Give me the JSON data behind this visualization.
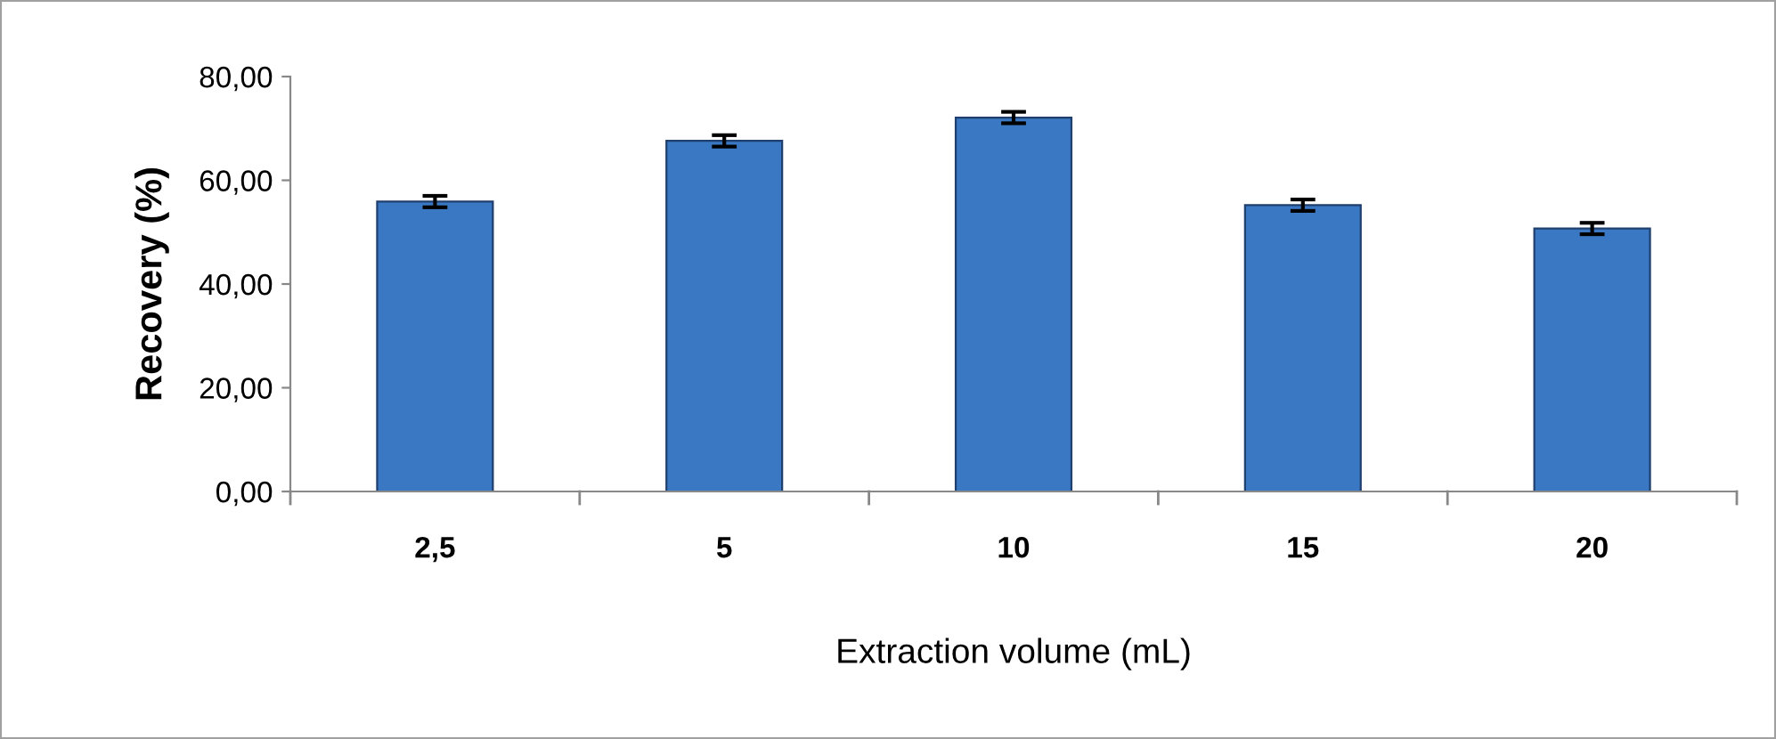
{
  "chart_data": {
    "type": "bar",
    "xlabel": "Extraction volume (mL)",
    "ylabel": "Recovery (%)",
    "categories": [
      "2,5",
      "5",
      "10",
      "15",
      "20"
    ],
    "values": [
      55.9,
      67.6,
      72.1,
      55.2,
      50.7
    ],
    "errors": [
      1.1,
      1.1,
      1.1,
      1.1,
      1.1
    ],
    "color": "#3a78c3",
    "ylim": [
      0,
      80
    ],
    "yticks": [
      {
        "value": 0,
        "label": "0,00"
      },
      {
        "value": 20,
        "label": "20,00"
      },
      {
        "value": 40,
        "label": "40,00"
      },
      {
        "value": 60,
        "label": "60,00"
      },
      {
        "value": 80,
        "label": "80,00"
      }
    ],
    "grid": false,
    "legend": false
  }
}
